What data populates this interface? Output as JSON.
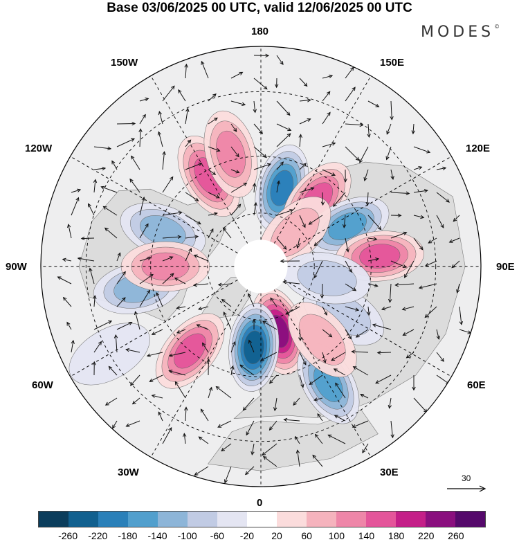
{
  "title": "Base 03/06/2025 00 UTC, valid 12/06/2025 00 UTC",
  "brand": "MODES",
  "brand_mark": "©",
  "longitude_labels": {
    "top": "180",
    "bottom": "0",
    "left": "90W",
    "right": "90E",
    "upper_left_1": "150W",
    "upper_left_2": "120W",
    "upper_right_1": "150E",
    "upper_right_2": "120E",
    "lower_left_1": "60W",
    "lower_left_2": "30W",
    "lower_right_1": "60E",
    "lower_right_2": "30E"
  },
  "wind_scale": {
    "value": "30"
  },
  "colorbar": {
    "colors": [
      "#0b3d5c",
      "#11608f",
      "#2a80b9",
      "#519fcd",
      "#8db5d8",
      "#c1cbe4",
      "#e4e5f2",
      "#ffffff",
      "#fbdcdc",
      "#f5b3bd",
      "#ee86a8",
      "#e4559a",
      "#c41f88",
      "#8a0f7e",
      "#55096b"
    ],
    "ticks": [
      "-260",
      "-220",
      "-180",
      "-140",
      "-100",
      "-60",
      "-20",
      "20",
      "60",
      "100",
      "140",
      "180",
      "220",
      "260"
    ]
  },
  "map": {
    "projection": "north-polar-stereographic",
    "land_color": "#dcdcdc",
    "anomaly_centers": [
      {
        "lon": 165,
        "lat": 60,
        "value": -180
      },
      {
        "lon": 140,
        "lat": 58,
        "value": 160
      },
      {
        "lon": 115,
        "lat": 55,
        "value": -150
      },
      {
        "lon": 95,
        "lat": 47,
        "value": 170
      },
      {
        "lon": 60,
        "lat": 55,
        "value": -90
      },
      {
        "lon": 15,
        "lat": 65,
        "value": 230
      },
      {
        "lon": -5,
        "lat": 60,
        "value": -230
      },
      {
        "lon": -40,
        "lat": 50,
        "value": 160
      },
      {
        "lon": -80,
        "lat": 45,
        "value": -120
      },
      {
        "lon": -110,
        "lat": 52,
        "value": -130
      },
      {
        "lon": -90,
        "lat": 55,
        "value": 110
      },
      {
        "lon": -150,
        "lat": 52,
        "value": 170
      },
      {
        "lon": -165,
        "lat": 48,
        "value": 130
      },
      {
        "lon": 30,
        "lat": 42,
        "value": -150
      },
      {
        "lon": 40,
        "lat": 55,
        "value": 60
      },
      {
        "lon": 135,
        "lat": 72,
        "value": 70
      },
      {
        "lon": 80,
        "lat": 65,
        "value": -60
      },
      {
        "lon": -60,
        "lat": 30,
        "value": -50
      }
    ]
  }
}
